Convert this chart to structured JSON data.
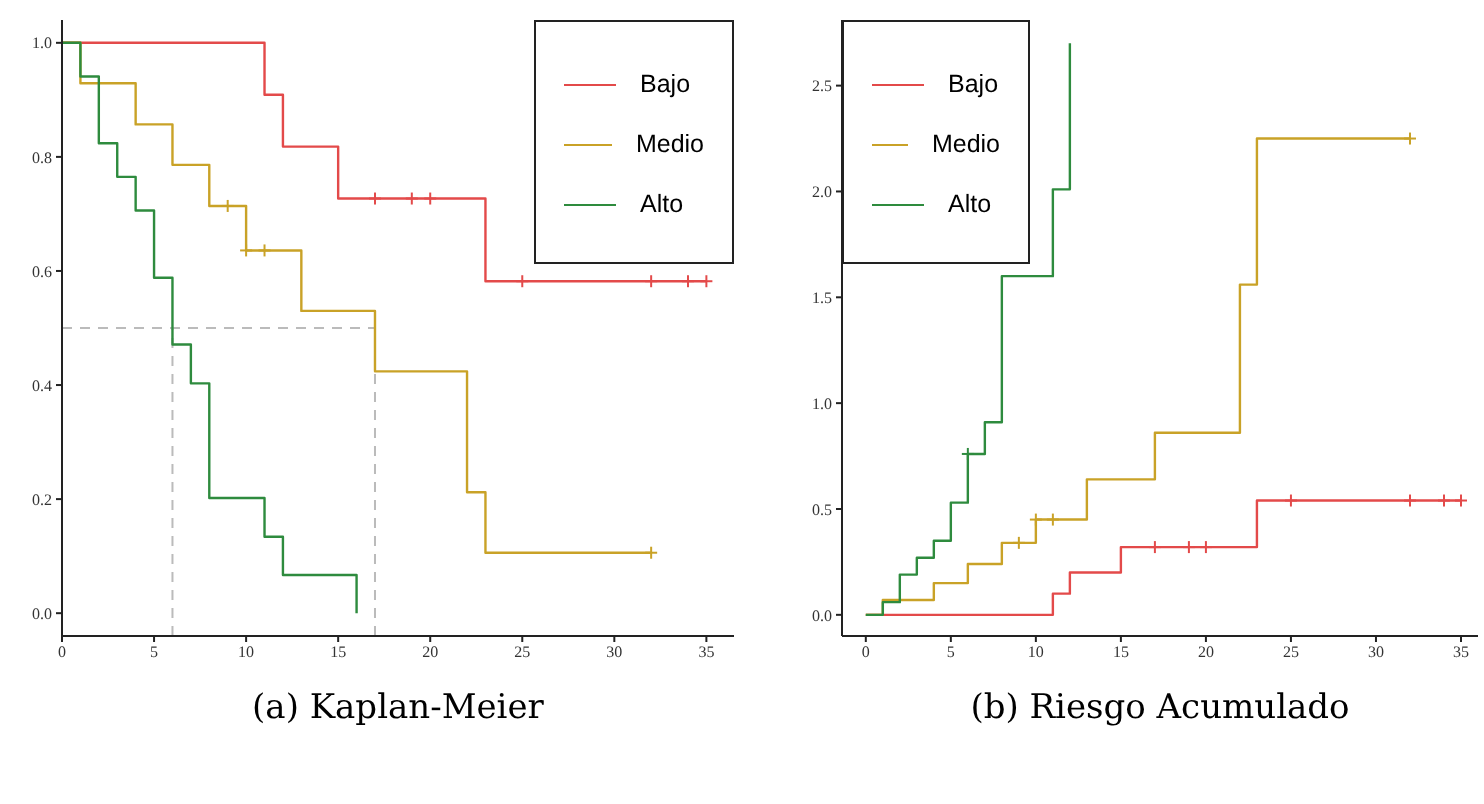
{
  "chart_data": [
    {
      "type": "step",
      "title": "(a) Kaplan-Meier",
      "xlim": [
        0,
        36.5
      ],
      "ylim": [
        -0.04,
        1.04
      ],
      "xticks": [
        0,
        5,
        10,
        15,
        20,
        25,
        30,
        35
      ],
      "yticks": [
        {
          "value": 0,
          "label": "0.0"
        },
        0.2,
        0.4,
        0.6,
        0.8,
        {
          "value": 1,
          "label": "1.0"
        }
      ],
      "grid": false,
      "legend": "top right",
      "series": [
        {
          "name": "Bajo",
          "color": "#e34a4a",
          "x": [
            0,
            11,
            12,
            15,
            23,
            35
          ],
          "values": [
            1.0,
            0.909,
            0.818,
            0.727,
            0.582,
            0.582
          ]
        },
        {
          "name": "Medio",
          "color": "#c9a227",
          "x": [
            0,
            1,
            4,
            6,
            8,
            10,
            13,
            17,
            22,
            23,
            32
          ],
          "values": [
            1.0,
            0.929,
            0.857,
            0.786,
            0.714,
            0.636,
            0.53,
            0.424,
            0.212,
            0.106,
            0.106
          ]
        },
        {
          "name": "Alto",
          "color": "#2e8b3e",
          "x": [
            0,
            1,
            2,
            3,
            4,
            5,
            6,
            7,
            8,
            11,
            12,
            16
          ],
          "values": [
            1.0,
            0.941,
            0.824,
            0.765,
            0.706,
            0.588,
            0.471,
            0.403,
            0.202,
            0.134,
            0.067,
            0
          ]
        },
        {
          "type": "scatter",
          "marker": "cross",
          "color": "#e34a4a",
          "x": [
            17,
            19,
            20,
            25,
            32,
            34,
            35
          ],
          "values": [
            0.727,
            0.727,
            0.727,
            0.582,
            0.582,
            0.582,
            0.582
          ]
        },
        {
          "type": "scatter",
          "marker": "cross",
          "color": "#c9a227",
          "x": [
            9,
            10,
            11,
            32
          ],
          "values": [
            0.714,
            0.636,
            0.636,
            0.106
          ]
        }
      ],
      "ref_lines": [
        {
          "axis": "y",
          "value": 0.5,
          "color": "#bbbbbb",
          "line_style": "dashed"
        },
        {
          "axis": "x",
          "value": 6,
          "color": "#bbbbbb",
          "line_style": "dashed"
        },
        {
          "axis": "x",
          "value": 17,
          "color": "#bbbbbb",
          "line_style": "dashed"
        }
      ]
    },
    {
      "type": "step",
      "title": "(b) Riesgo Acumulado",
      "xlim": [
        -1.4,
        36
      ],
      "ylim": [
        -0.1,
        2.81
      ],
      "xticks": [
        0,
        5,
        10,
        15,
        20,
        25,
        30,
        35
      ],
      "yticks": [
        {
          "value": 0,
          "label": "0.0"
        },
        0.5,
        {
          "value": 1,
          "label": "1.0"
        },
        1.5,
        {
          "value": 2,
          "label": "2.0"
        },
        2.5
      ],
      "grid": false,
      "legend": "top left",
      "series": [
        {
          "name": "Bajo",
          "color": "#e34a4a",
          "x": [
            0,
            11,
            12,
            15,
            23,
            35
          ],
          "values": [
            0,
            0.1,
            0.2,
            0.32,
            0.54,
            0.54
          ]
        },
        {
          "name": "Medio",
          "color": "#c9a227",
          "x": [
            0,
            1,
            4,
            6,
            8,
            10,
            13,
            17,
            22,
            23,
            32
          ],
          "values": [
            0,
            0.07,
            0.15,
            0.24,
            0.34,
            0.45,
            0.64,
            0.86,
            1.56,
            2.25,
            2.25
          ]
        },
        {
          "name": "Alto",
          "color": "#2e8b3e",
          "x": [
            0,
            1,
            2,
            3,
            4,
            5,
            6,
            7,
            8,
            11,
            12
          ],
          "values": [
            0,
            0.06,
            0.19,
            0.27,
            0.35,
            0.53,
            0.76,
            0.91,
            1.6,
            2.01,
            2.7
          ]
        },
        {
          "type": "scatter",
          "marker": "cross",
          "color": "#e34a4a",
          "x": [
            17,
            19,
            20,
            25,
            32,
            34,
            35
          ],
          "values": [
            0.32,
            0.32,
            0.32,
            0.54,
            0.54,
            0.54,
            0.54
          ]
        },
        {
          "type": "scatter",
          "marker": "cross",
          "color": "#c9a227",
          "x": [
            9,
            10,
            11,
            32
          ],
          "values": [
            0.34,
            0.45,
            0.45,
            2.25
          ]
        },
        {
          "type": "scatter",
          "marker": "cross",
          "color": "#2e8b3e",
          "x": [
            6
          ],
          "values": [
            0.76
          ]
        }
      ]
    }
  ]
}
